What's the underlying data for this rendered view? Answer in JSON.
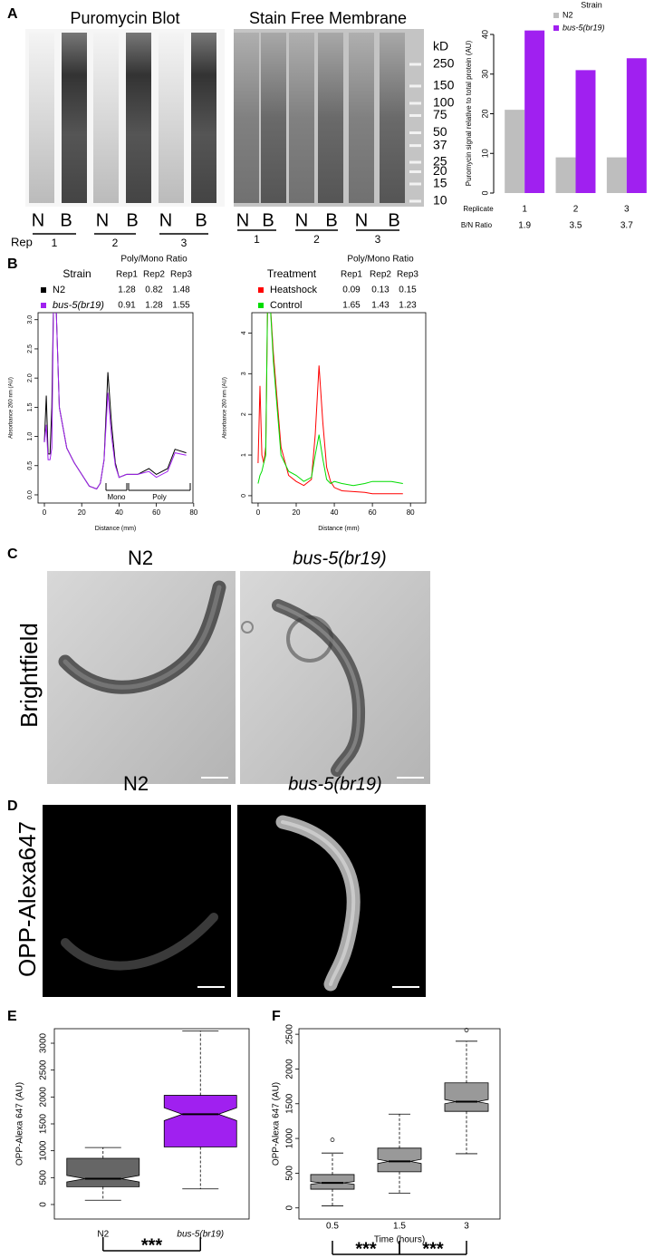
{
  "panel_labels": [
    "A",
    "B",
    "C",
    "D",
    "E",
    "F"
  ],
  "blot": {
    "titles": [
      "Puromycin Blot",
      "Stain Free Membrane"
    ],
    "lanes": [
      "N",
      "B",
      "N",
      "B",
      "N",
      "B"
    ],
    "rep_label": "Rep",
    "reps": [
      "1",
      "2",
      "3"
    ],
    "marker_unit": "kD",
    "markers": [
      250,
      150,
      100,
      75,
      50,
      37,
      25,
      20,
      15,
      10
    ]
  },
  "images": {
    "rows": [
      "Brightfield",
      "OPP-Alexa647"
    ],
    "strains": [
      "N2",
      "bus-5(br19)"
    ]
  },
  "chart_data": [
    {
      "type": "bar",
      "legend_title": "Strain",
      "categories": [
        "1",
        "2",
        "3"
      ],
      "xlabel": "Replicate",
      "ylabel": "Puromycin signal relative to total protein (AU)",
      "series": [
        {
          "name": "N2",
          "color": "#bebebe",
          "values": [
            21,
            9,
            9
          ]
        },
        {
          "name": "bus-5(br19)",
          "color": "#a020f0",
          "values": [
            41,
            31,
            34
          ]
        }
      ],
      "ylim": [
        0,
        40
      ],
      "yticks": [
        0,
        10,
        20,
        30,
        40
      ],
      "ratio_label": "B/N  Ratio",
      "ratios": [
        1.9,
        3.5,
        3.7
      ]
    },
    {
      "type": "line",
      "xlabel": "Distance (mm)",
      "ylabel": "Absorbance 260 nm (AU)",
      "x": [
        0,
        1,
        2,
        3,
        4,
        5,
        6,
        8,
        12,
        16,
        20,
        24,
        28,
        30,
        32,
        34,
        36,
        38,
        40,
        44,
        50,
        56,
        60,
        66,
        70,
        76
      ],
      "series": [
        {
          "name": "N2",
          "color": "#000000",
          "values": [
            0.9,
            1.7,
            0.7,
            0.7,
            1.5,
            3.5,
            3.5,
            1.5,
            0.8,
            0.55,
            0.35,
            0.15,
            0.1,
            0.2,
            0.6,
            2.1,
            1.2,
            0.55,
            0.3,
            0.35,
            0.35,
            0.45,
            0.35,
            0.45,
            0.78,
            0.72
          ]
        },
        {
          "name": "bus-5(br19)",
          "color": "#a020f0",
          "values": [
            0.9,
            1.2,
            0.6,
            0.6,
            0.8,
            3.5,
            3.5,
            1.5,
            0.8,
            0.55,
            0.35,
            0.15,
            0.1,
            0.2,
            0.6,
            1.75,
            1.0,
            0.5,
            0.3,
            0.35,
            0.35,
            0.4,
            0.3,
            0.4,
            0.72,
            0.68
          ]
        }
      ],
      "xlim": [
        -3.4,
        79.6
      ],
      "ylim": [
        -0.14,
        3.12
      ],
      "xticks": [
        0,
        20,
        40,
        60,
        80
      ],
      "yticks": [
        {
          "value": 0,
          "label": "0.0"
        },
        0.5,
        {
          "value": 1,
          "label": "1.0"
        },
        1.5,
        {
          "value": 2,
          "label": "2.0"
        },
        2.5,
        {
          "value": 3,
          "label": "3.0"
        }
      ],
      "annotations": [
        "Mono",
        "Poly"
      ],
      "table": {
        "title": "Poly/Mono Ratio",
        "header": [
          "Strain",
          "Rep1",
          "Rep2",
          "Rep3"
        ],
        "rows": [
          [
            1.28,
            0.82,
            1.48
          ],
          [
            0.91,
            1.28,
            1.55
          ]
        ]
      }
    },
    {
      "type": "line",
      "xlabel": "Distance (mm)",
      "ylabel": "Absorbance 260 nm (AU)",
      "x": [
        0,
        1,
        2,
        3,
        4,
        5,
        6,
        8,
        12,
        16,
        20,
        24,
        28,
        30,
        32,
        34,
        36,
        38,
        40,
        44,
        50,
        56,
        60,
        66,
        70,
        76
      ],
      "series": [
        {
          "name": "Heatshock",
          "color": "#ff0000",
          "values": [
            0.8,
            2.7,
            1.0,
            0.8,
            1.2,
            4.8,
            5,
            3.5,
            1.2,
            0.5,
            0.35,
            0.25,
            0.4,
            1.5,
            3.2,
            1.8,
            0.7,
            0.35,
            0.2,
            0.12,
            0.1,
            0.08,
            0.05,
            0.05,
            0.05,
            0.05
          ]
        },
        {
          "name": "Control",
          "color": "#00dd00",
          "values": [
            0.3,
            0.5,
            0.6,
            0.8,
            1.0,
            5,
            5,
            3.3,
            1.0,
            0.6,
            0.5,
            0.35,
            0.45,
            1.0,
            1.5,
            0.9,
            0.4,
            0.3,
            0.35,
            0.3,
            0.25,
            0.3,
            0.35,
            0.35,
            0.35,
            0.3
          ]
        }
      ],
      "xlim": [
        -3.3,
        88
      ],
      "ylim": [
        -0.18,
        4.5
      ],
      "xticks": [
        0,
        20,
        40,
        60,
        80
      ],
      "yticks": [
        0,
        1,
        2,
        3,
        4
      ],
      "table": {
        "title": "Poly/Mono Ratio",
        "header": [
          "Treatment",
          "Rep1",
          "Rep2",
          "Rep3"
        ],
        "rows": [
          [
            0.09,
            0.13,
            0.15
          ],
          [
            1.65,
            1.43,
            1.23
          ]
        ]
      }
    },
    {
      "type": "box",
      "ylabel": "OPP-Alexa 647 (AU)",
      "categories": [
        "N2",
        "bus-5(br19)"
      ],
      "colors": [
        "#666666",
        "#a020f0"
      ],
      "boxes": [
        {
          "min": 80,
          "q1": 330,
          "median": 480,
          "q3": 860,
          "max": 1060,
          "notch": [
            420,
            540
          ],
          "outliers": []
        },
        {
          "min": 290,
          "q1": 1070,
          "median": 1680,
          "q3": 2030,
          "max": 3230,
          "notch": [
            1560,
            1800
          ],
          "outliers": []
        }
      ],
      "ylim": [
        -270,
        3270
      ],
      "yticks": [
        0,
        500,
        1000,
        1500,
        2000,
        2500,
        3000
      ],
      "significance": [
        "***"
      ]
    },
    {
      "type": "box",
      "ylabel": "OPP-Alexa 647 (AU)",
      "xlabel": "Time (hours)",
      "categories": [
        "0.5",
        "1.5",
        "3"
      ],
      "colors": [
        "#999999",
        "#999999",
        "#999999"
      ],
      "boxes": [
        {
          "min": 30,
          "q1": 270,
          "median": 360,
          "q3": 480,
          "max": 790,
          "notch": [
            340,
            380
          ],
          "outliers": [
            980
          ]
        },
        {
          "min": 210,
          "q1": 520,
          "median": 670,
          "q3": 860,
          "max": 1350,
          "notch": [
            640,
            700
          ],
          "outliers": []
        },
        {
          "min": 780,
          "q1": 1390,
          "median": 1530,
          "q3": 1800,
          "max": 2400,
          "notch": [
            1500,
            1560
          ],
          "outliers": [
            2560
          ]
        }
      ],
      "ylim": [
        -160,
        2580
      ],
      "yticks": [
        0,
        500,
        1000,
        1500,
        2000,
        2500
      ],
      "significance": [
        "***",
        "***"
      ]
    }
  ]
}
